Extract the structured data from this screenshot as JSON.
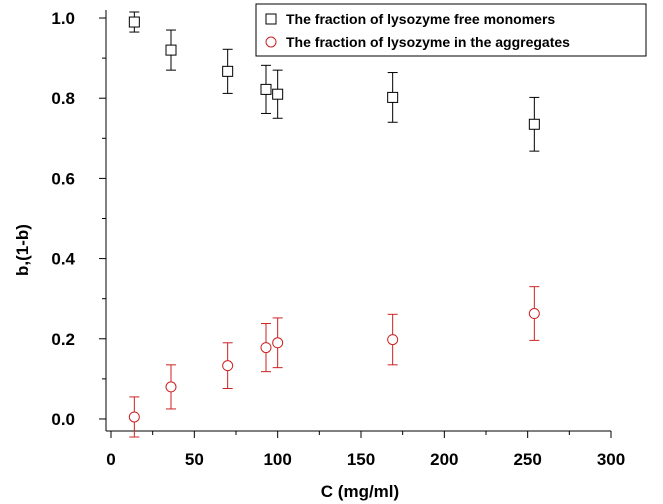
{
  "chart_data": {
    "type": "scatter",
    "xlabel": "C (mg/ml)",
    "ylabel": "b,(1-b)",
    "xlim": [
      -3,
      300
    ],
    "ylim": [
      -0.03,
      1.02
    ],
    "xticks": [
      0,
      50,
      100,
      150,
      200,
      250,
      300
    ],
    "yticks": [
      0.0,
      0.2,
      0.4,
      0.6,
      0.8,
      1.0
    ],
    "xtick_labels": [
      "0",
      "50",
      "100",
      "150",
      "200",
      "250",
      "300"
    ],
    "ytick_labels": [
      "0.0",
      "0.2",
      "0.4",
      "0.6",
      "0.8",
      "1.0"
    ],
    "grid": false,
    "legend_position": "top-right",
    "series": [
      {
        "name": "The fraction of lysozyme free monomers",
        "marker": "square",
        "color": "#000000",
        "points": [
          {
            "x": 14,
            "y": 0.99,
            "err": 0.025
          },
          {
            "x": 36,
            "y": 0.92,
            "err": 0.05
          },
          {
            "x": 70,
            "y": 0.867,
            "err": 0.055
          },
          {
            "x": 93,
            "y": 0.822,
            "err": 0.06
          },
          {
            "x": 100,
            "y": 0.81,
            "err": 0.06
          },
          {
            "x": 169,
            "y": 0.802,
            "err": 0.062
          },
          {
            "x": 254,
            "y": 0.735,
            "err": 0.067
          }
        ]
      },
      {
        "name": "The fraction of lysozyme in the aggregates",
        "marker": "circle",
        "color": "#cc2222",
        "points": [
          {
            "x": 14,
            "y": 0.005,
            "err": 0.05
          },
          {
            "x": 36,
            "y": 0.08,
            "err": 0.055
          },
          {
            "x": 70,
            "y": 0.133,
            "err": 0.057
          },
          {
            "x": 93,
            "y": 0.178,
            "err": 0.06
          },
          {
            "x": 100,
            "y": 0.19,
            "err": 0.062
          },
          {
            "x": 169,
            "y": 0.198,
            "err": 0.063
          },
          {
            "x": 254,
            "y": 0.263,
            "err": 0.067
          }
        ]
      }
    ]
  }
}
